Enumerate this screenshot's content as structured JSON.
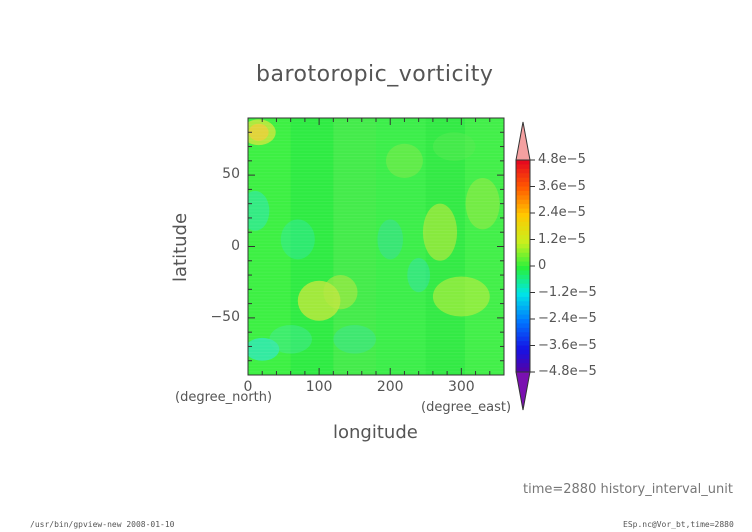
{
  "chart_data": {
    "type": "heatmap",
    "title": "barotoropic_vorticity",
    "xlabel": "longitude",
    "ylabel": "latitude",
    "x_unit": "(degree_east)",
    "y_unit": "(degree_north)",
    "xlim": [
      0,
      360
    ],
    "ylim": [
      -90,
      90
    ],
    "x_ticks": [
      "0",
      "100",
      "200",
      "300"
    ],
    "x_tick_values": [
      0,
      100,
      200,
      300
    ],
    "y_ticks": [
      "50",
      "0",
      "−50"
    ],
    "y_tick_values": [
      50,
      0,
      -50
    ],
    "colorbar": {
      "min": -4.8e-05,
      "max": 4.8e-05,
      "tick_labels": [
        "4.8e−5",
        "3.6e−5",
        "2.4e−5",
        "1.2e−5",
        "0",
        "−1.2e−5",
        "−2.4e−5",
        "−3.6e−5",
        "−4.8e−5"
      ],
      "tick_values": [
        4.8e-05,
        3.6e-05,
        2.4e-05,
        1.2e-05,
        0,
        -1.2e-05,
        -2.4e-05,
        -3.6e-05,
        -4.8e-05
      ],
      "extend": "both"
    }
  },
  "annotations": {
    "time": "time=2880  history_interval_unit",
    "footer_left": "/usr/bin/gpview-new  2008-01-10",
    "footer_right": "ESp.nc@Vor_bt,time=2880"
  }
}
